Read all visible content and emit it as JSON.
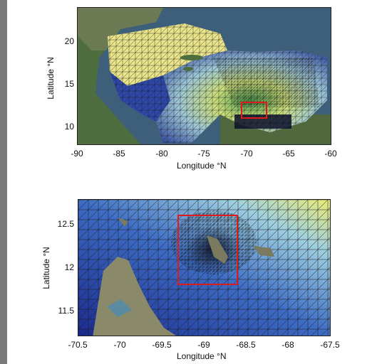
{
  "figure": {
    "top_map": {
      "xlabel": "Longitude °N",
      "ylabel": "Latitude °N",
      "xticks": [
        "-90",
        "-85",
        "-80",
        "-75",
        "-70",
        "-65",
        "-60"
      ],
      "yticks": [
        "20",
        "15",
        "10"
      ]
    },
    "bottom_map": {
      "xlabel": "Longitude °N",
      "ylabel": "Latitude °N",
      "xticks": [
        "-70.5",
        "-70",
        "-69.5",
        "-69",
        "-68.5",
        "-68",
        "-67.5"
      ],
      "yticks": [
        "12.5",
        "12",
        "11.5"
      ]
    },
    "colors": {
      "mesh_line": "#1a1a1a",
      "highlight_box": "#e0191b",
      "deep_water": "#1d2a8a",
      "mid_water": "#4a7fd0",
      "shallow_water": "#f1ec7a",
      "land": "#4c6b3c"
    }
  }
}
